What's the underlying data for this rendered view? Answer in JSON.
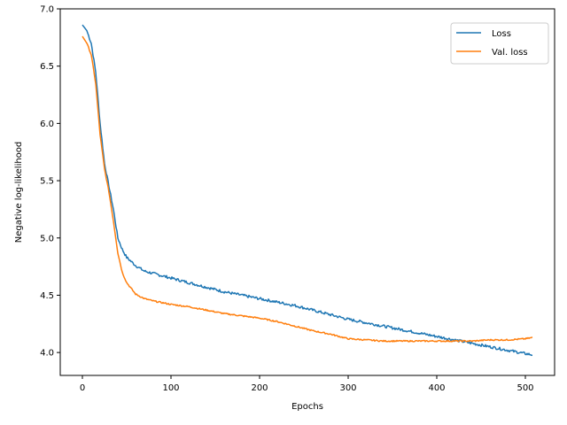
{
  "chart_data": {
    "type": "line",
    "title": "",
    "xlabel": "Epochs",
    "ylabel": "Negative log-likelihood",
    "xlim": [
      -25,
      533
    ],
    "ylim": [
      3.8,
      7.0
    ],
    "xticks": [
      0,
      100,
      200,
      300,
      400,
      500
    ],
    "yticks": [
      4.0,
      4.5,
      5.0,
      5.5,
      6.0,
      6.5,
      7.0
    ],
    "xtick_labels": [
      "0",
      "100",
      "200",
      "300",
      "400",
      "500"
    ],
    "ytick_labels": [
      "4.0",
      "4.5",
      "5.0",
      "5.5",
      "6.0",
      "6.5",
      "7.0"
    ],
    "grid": false,
    "legend_position": "top-right",
    "series": [
      {
        "name": "Loss",
        "color": "#1f77b4",
        "noise": 0.012,
        "x": [
          0,
          5,
          10,
          15,
          20,
          25,
          30,
          35,
          40,
          45,
          50,
          60,
          70,
          80,
          90,
          100,
          120,
          140,
          160,
          180,
          200,
          220,
          240,
          260,
          280,
          300,
          320,
          340,
          360,
          380,
          400,
          420,
          440,
          460,
          480,
          500,
          508
        ],
        "y": [
          6.86,
          6.81,
          6.7,
          6.45,
          6.0,
          5.65,
          5.45,
          5.25,
          5.0,
          4.9,
          4.83,
          4.76,
          4.71,
          4.69,
          4.67,
          4.65,
          4.61,
          4.57,
          4.53,
          4.5,
          4.47,
          4.44,
          4.41,
          4.37,
          4.33,
          4.29,
          4.26,
          4.23,
          4.2,
          4.17,
          4.14,
          4.11,
          4.08,
          4.05,
          4.02,
          3.99,
          3.98
        ]
      },
      {
        "name": "Val. loss",
        "color": "#ff7f0e",
        "noise": 0.006,
        "x": [
          0,
          5,
          10,
          15,
          20,
          25,
          30,
          35,
          40,
          45,
          50,
          55,
          60,
          70,
          80,
          100,
          120,
          140,
          160,
          180,
          200,
          220,
          240,
          260,
          280,
          300,
          320,
          340,
          360,
          380,
          400,
          420,
          440,
          460,
          480,
          500,
          508
        ],
        "y": [
          6.76,
          6.7,
          6.6,
          6.35,
          5.9,
          5.6,
          5.4,
          5.15,
          4.87,
          4.7,
          4.61,
          4.56,
          4.51,
          4.47,
          4.45,
          4.42,
          4.4,
          4.37,
          4.34,
          4.32,
          4.3,
          4.27,
          4.23,
          4.19,
          4.16,
          4.12,
          4.11,
          4.1,
          4.1,
          4.1,
          4.1,
          4.1,
          4.1,
          4.11,
          4.11,
          4.12,
          4.13
        ]
      }
    ]
  }
}
